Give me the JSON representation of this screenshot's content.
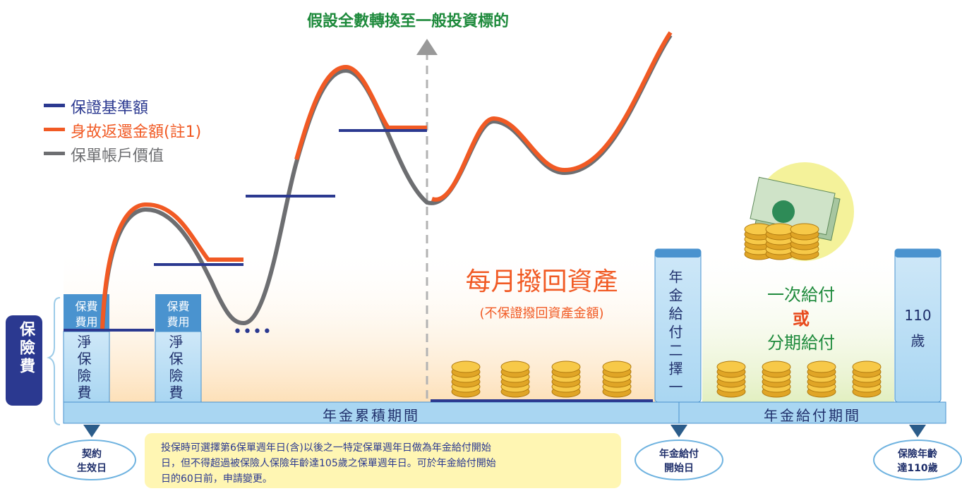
{
  "title": "假設全數轉換至一般投資標的",
  "legend": [
    {
      "label": "保證基準額",
      "color": "#2b3990"
    },
    {
      "label": "身故返還金額(註1)",
      "color": "#f15a24"
    },
    {
      "label": "保單帳戶價值",
      "color": "#6d6e71"
    }
  ],
  "premium_label": "保險費",
  "fee_box": [
    "保費",
    "費用"
  ],
  "net_box": "淨保險費",
  "ellipsis": "••••",
  "monthly": {
    "title": "每月撥回資產",
    "subtitle": "(不保證撥回資產金額)"
  },
  "choice_box": "年金給付二擇一",
  "payout_options": [
    "一次給付",
    "或",
    "分期給付"
  ],
  "age_box": [
    "110",
    "歲"
  ],
  "periods": [
    "年金累積期間",
    "年金給付期間"
  ],
  "markers": [
    [
      "契約",
      "生效日"
    ],
    [
      "年金給付",
      "開始日"
    ],
    [
      "保險年齡",
      "達110歲"
    ]
  ],
  "note": [
    "投保時可選擇第6保單週年日(含)以後之一特定保單週年日做為年金給付開始",
    "日，但不得超過被保險人保險年齡達105歲之保單週年日。可於年金給付開始",
    "日的60日前，申請變更。"
  ]
}
